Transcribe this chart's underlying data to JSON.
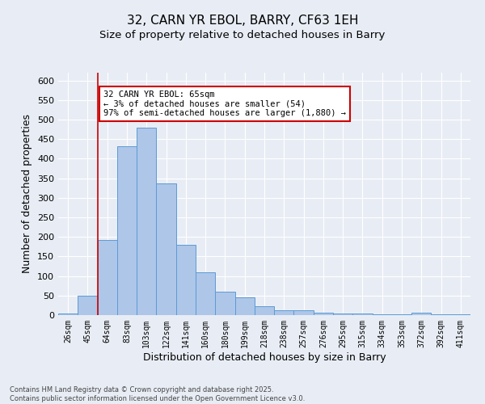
{
  "title": "32, CARN YR EBOL, BARRY, CF63 1EH",
  "subtitle": "Size of property relative to detached houses in Barry",
  "xlabel": "Distribution of detached houses by size in Barry",
  "ylabel": "Number of detached properties",
  "categories": [
    "26sqm",
    "45sqm",
    "64sqm",
    "83sqm",
    "103sqm",
    "122sqm",
    "141sqm",
    "160sqm",
    "180sqm",
    "199sqm",
    "218sqm",
    "238sqm",
    "257sqm",
    "276sqm",
    "295sqm",
    "315sqm",
    "334sqm",
    "353sqm",
    "372sqm",
    "392sqm",
    "411sqm"
  ],
  "values": [
    5,
    50,
    192,
    432,
    480,
    337,
    180,
    110,
    60,
    45,
    22,
    12,
    12,
    7,
    5,
    4,
    3,
    2,
    6,
    2,
    3
  ],
  "bar_color": "#aec6e8",
  "bar_edge_color": "#5b9bd5",
  "ylim": [
    0,
    620
  ],
  "yticks": [
    0,
    50,
    100,
    150,
    200,
    250,
    300,
    350,
    400,
    450,
    500,
    550,
    600
  ],
  "red_line_index": 2,
  "annotation_text": "32 CARN YR EBOL: 65sqm\n← 3% of detached houses are smaller (54)\n97% of semi-detached houses are larger (1,880) →",
  "annotation_box_color": "#ffffff",
  "annotation_box_edge": "#cc0000",
  "footnote": "Contains HM Land Registry data © Crown copyright and database right 2025.\nContains public sector information licensed under the Open Government Licence v3.0.",
  "background_color": "#e8edf5",
  "grid_color": "#ffffff",
  "title_fontsize": 11,
  "subtitle_fontsize": 9.5
}
